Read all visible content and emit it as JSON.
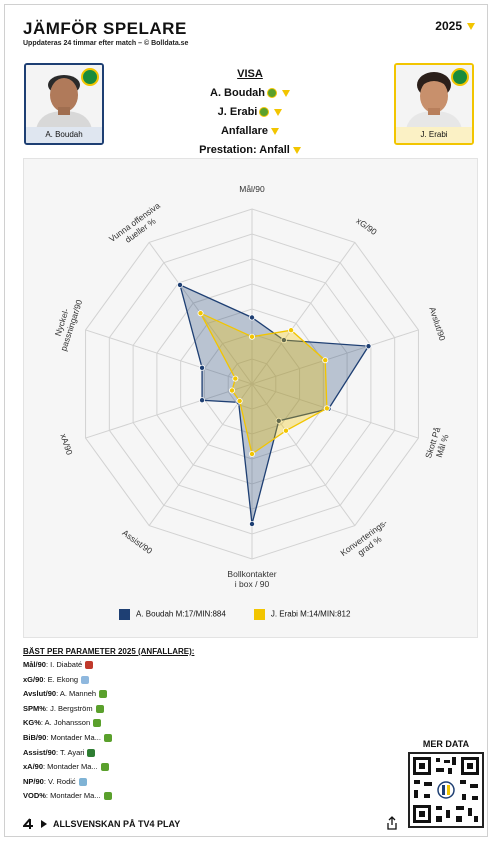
{
  "header": {
    "title": "JÄMFÖR SPELARE",
    "subtitle": "Uppdateras 24 timmar efter match – © Bolldata.se",
    "season": "2025"
  },
  "players": {
    "left": {
      "name": "A. Boudah"
    },
    "right": {
      "name": "J. Erabi"
    }
  },
  "visa": {
    "header": "VISA",
    "player1": "A. Boudah",
    "player2": "J. Erabi",
    "position": "Anfallare",
    "preset": "Prestation: Anfall"
  },
  "chart_data": {
    "type": "radar",
    "axes": [
      "Mål/90",
      "xG/90",
      "Avslut/90",
      "Skott På Mål %",
      "Konverterings-grad %",
      "Bollkontakter i box / 90",
      "Assist/90",
      "xA/90",
      "Nyckel-passningar/90",
      "Vunna offensiva dueller %"
    ],
    "rmax": 1,
    "series": [
      {
        "name": "A. Boudah M:17/MIN:884",
        "color": "#1e3f73",
        "values": [
          0.38,
          0.31,
          0.7,
          0.46,
          0.26,
          0.8,
          0.13,
          0.3,
          0.3,
          0.7
        ]
      },
      {
        "name": "J. Erabi M:14/MIN:812",
        "color": "#f2c500",
        "values": [
          0.27,
          0.38,
          0.44,
          0.45,
          0.33,
          0.4,
          0.12,
          0.12,
          0.1,
          0.5
        ]
      }
    ],
    "legend": [
      "A. Boudah M:17/MIN:884",
      "J. Erabi M:14/MIN:812"
    ]
  },
  "best": {
    "header": "BÄST PER PARAMETER 2025 (ANFALLARE):",
    "rows": [
      {
        "k": "Mål/90",
        "v": ": I. Diabaté"
      },
      {
        "k": "xG/90",
        "v": ": E. Ekong"
      },
      {
        "k": "Avslut/90",
        "v": ": A. Manneh"
      },
      {
        "k": "SPM%",
        "v": ": J. Bergström"
      },
      {
        "k": "KG%",
        "v": ": A. Johansson"
      },
      {
        "k": "BiB/90",
        "v": ": Montader Ma..."
      },
      {
        "k": "Assist/90",
        "v": ": T. Ayari"
      },
      {
        "k": "xA/90",
        "v": ": Montader Ma..."
      },
      {
        "k": "NP/90",
        "v": ": V. Rodić"
      },
      {
        "k": "VOD%",
        "v": ": Montader Ma..."
      }
    ]
  },
  "more": {
    "label": "MER DATA"
  },
  "footer": {
    "label": "ALLSVENSKAN PÅ TV4 PLAY"
  }
}
